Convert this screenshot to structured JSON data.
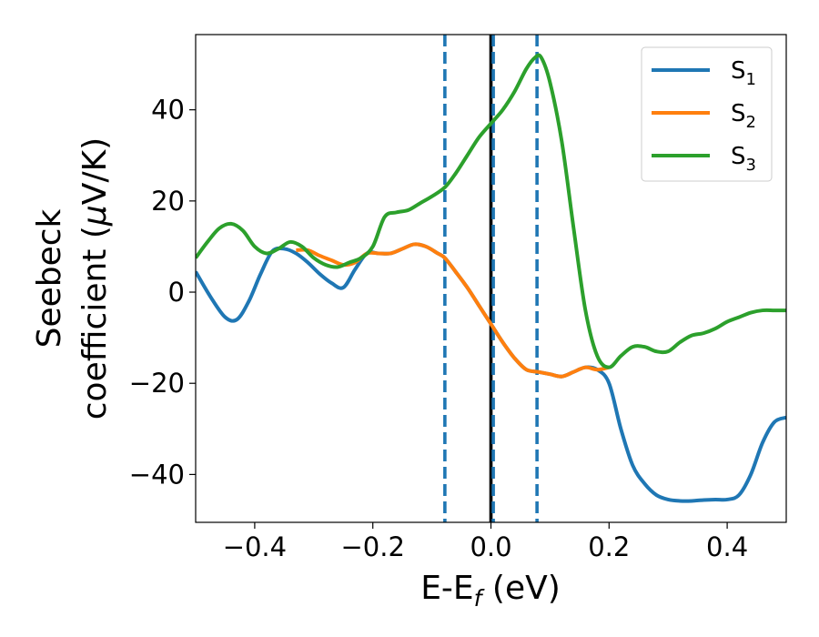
{
  "chart_data": {
    "type": "line",
    "xlabel": {
      "main": "E-E",
      "sub": "f",
      "unit": " (eV)"
    },
    "ylabel": {
      "line1": "Seebeck",
      "line2_prefix": "coefficient  (",
      "line2_mu": "μ",
      "line2_suffix": "V/K)"
    },
    "xlim": [
      -0.5,
      0.5
    ],
    "ylim": [
      -50.5,
      56.5
    ],
    "xticks": [
      {
        "v": -0.4,
        "label": "−0.4"
      },
      {
        "v": -0.2,
        "label": "−0.2"
      },
      {
        "v": 0.0,
        "label": "0.0"
      },
      {
        "v": 0.2,
        "label": "0.2"
      },
      {
        "v": 0.4,
        "label": "0.4"
      }
    ],
    "yticks": [
      {
        "v": -40,
        "label": "−40"
      },
      {
        "v": -20,
        "label": "−20"
      },
      {
        "v": 0,
        "label": "0"
      },
      {
        "v": 20,
        "label": "20"
      },
      {
        "v": 40,
        "label": "40"
      }
    ],
    "grid": false,
    "legend_position": "top-right",
    "vlines": [
      {
        "x": 0.0,
        "color": "#000000",
        "style": "solid"
      },
      {
        "x": -0.078,
        "color": "#1f77b4",
        "style": "dashed"
      },
      {
        "x": 0.004,
        "color": "#1f77b4",
        "style": "dashed"
      },
      {
        "x": 0.078,
        "color": "#1f77b4",
        "style": "dashed"
      }
    ],
    "series": [
      {
        "name": "S",
        "sub": "1",
        "color": "#1f77b4",
        "x": [
          -0.5,
          -0.475,
          -0.45,
          -0.43,
          -0.41,
          -0.39,
          -0.37,
          -0.35,
          -0.33,
          -0.31,
          -0.29,
          -0.27,
          -0.25,
          -0.23,
          -0.21,
          -0.19,
          -0.17,
          -0.15,
          -0.13,
          -0.11,
          -0.09,
          -0.078,
          -0.06,
          -0.04,
          -0.02,
          0.0,
          0.02,
          0.04,
          0.06,
          0.08,
          0.1,
          0.12,
          0.14,
          0.16,
          0.18,
          0.2,
          0.22,
          0.24,
          0.26,
          0.28,
          0.3,
          0.32,
          0.34,
          0.36,
          0.38,
          0.4,
          0.42,
          0.44,
          0.46,
          0.48,
          0.5
        ],
        "y": [
          4.5,
          -1,
          -5.5,
          -6,
          -2,
          4,
          9,
          9.5,
          8.5,
          6.5,
          4,
          2,
          1,
          5,
          8.5,
          8.5,
          8.5,
          9.5,
          10.5,
          10,
          8.5,
          7.5,
          4.5,
          1,
          -3,
          -7,
          -11,
          -14.5,
          -17,
          -17.5,
          -18,
          -18.5,
          -17.5,
          -16.5,
          -17,
          -20,
          -30,
          -38,
          -42,
          -44.5,
          -45.5,
          -45.8,
          -45.8,
          -45.6,
          -45.5,
          -45.5,
          -44.5,
          -40,
          -33,
          -28.5,
          -27.5
        ]
      },
      {
        "name": "S",
        "sub": "2",
        "color": "#ff7f0e",
        "x": [
          -0.33,
          -0.31,
          -0.29,
          -0.27,
          -0.25,
          -0.23,
          -0.21,
          -0.19,
          -0.17,
          -0.15,
          -0.13,
          -0.11,
          -0.09,
          -0.078,
          -0.06,
          -0.04,
          -0.02,
          0.0,
          0.02,
          0.04,
          0.06,
          0.08,
          0.1,
          0.12,
          0.14,
          0.16,
          0.18,
          0.2
        ],
        "y": [
          9.2,
          9.2,
          8.0,
          7.0,
          6.0,
          6.5,
          8.5,
          8.5,
          8.5,
          9.5,
          10.5,
          10,
          8.5,
          7.5,
          4.5,
          1,
          -3,
          -7,
          -11,
          -14.5,
          -17,
          -17.5,
          -18,
          -18.5,
          -17.5,
          -16.5,
          -17,
          -16.5
        ]
      },
      {
        "name": "S",
        "sub": "3",
        "color": "#2ca02c",
        "x": [
          -0.5,
          -0.48,
          -0.46,
          -0.44,
          -0.42,
          -0.4,
          -0.38,
          -0.36,
          -0.34,
          -0.32,
          -0.3,
          -0.28,
          -0.26,
          -0.24,
          -0.22,
          -0.2,
          -0.18,
          -0.16,
          -0.14,
          -0.12,
          -0.1,
          -0.078,
          -0.06,
          -0.04,
          -0.02,
          0.0,
          0.02,
          0.04,
          0.06,
          0.075,
          0.085,
          0.1,
          0.12,
          0.14,
          0.16,
          0.18,
          0.2,
          0.22,
          0.24,
          0.26,
          0.28,
          0.3,
          0.32,
          0.34,
          0.36,
          0.38,
          0.4,
          0.42,
          0.44,
          0.46,
          0.48,
          0.5
        ],
        "y": [
          7.5,
          11,
          14,
          15,
          13.5,
          10,
          8.5,
          9.5,
          11,
          10,
          7.5,
          6,
          5.5,
          6.5,
          7.5,
          10,
          16.5,
          17.5,
          18,
          19.5,
          21,
          23,
          26,
          30,
          34,
          37,
          40,
          44,
          49,
          51.5,
          51.5,
          46,
          33,
          14,
          -4,
          -14,
          -16.5,
          -14,
          -12,
          -12,
          -13,
          -13,
          -11,
          -9.5,
          -9,
          -8,
          -6.5,
          -5.5,
          -4.5,
          -4,
          -4,
          -4
        ]
      }
    ]
  }
}
